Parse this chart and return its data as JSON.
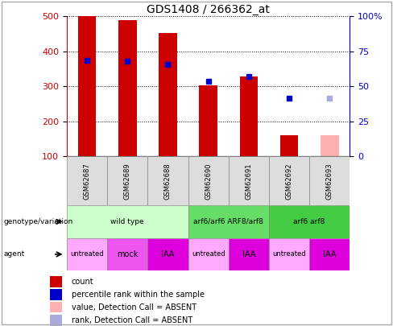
{
  "title": "GDS1408 / 266362_at",
  "samples": [
    "GSM62687",
    "GSM62689",
    "GSM62688",
    "GSM62690",
    "GSM62691",
    "GSM62692",
    "GSM62693"
  ],
  "count_values": [
    500,
    490,
    452,
    302,
    328,
    160,
    null
  ],
  "count_absent": [
    null,
    null,
    null,
    null,
    null,
    null,
    160
  ],
  "percentile_values": [
    375,
    372,
    362,
    315,
    328,
    267,
    null
  ],
  "percentile_absent": [
    null,
    null,
    null,
    null,
    null,
    null,
    267
  ],
  "ylim_left": [
    100,
    500
  ],
  "ylim_right": [
    0,
    100
  ],
  "yticks_left": [
    100,
    200,
    300,
    400,
    500
  ],
  "yticks_right": [
    0,
    25,
    50,
    75,
    100
  ],
  "bar_color": "#cc0000",
  "bar_absent_color": "#ffb0b0",
  "dot_color": "#0000cc",
  "dot_absent_color": "#aaaadd",
  "genotype_groups": [
    {
      "label": "wild type",
      "start": 0,
      "end": 3,
      "color": "#ccffcc"
    },
    {
      "label": "arf6/arf6 ARF8/arf8",
      "start": 3,
      "end": 5,
      "color": "#66dd66"
    },
    {
      "label": "arf6 arf8",
      "start": 5,
      "end": 7,
      "color": "#44cc44"
    }
  ],
  "agent_groups": [
    {
      "label": "untreated",
      "start": 0,
      "end": 1,
      "color": "#ffaaff"
    },
    {
      "label": "mock",
      "start": 1,
      "end": 2,
      "color": "#ee55ee"
    },
    {
      "label": "IAA",
      "start": 2,
      "end": 3,
      "color": "#dd00dd"
    },
    {
      "label": "untreated",
      "start": 3,
      "end": 4,
      "color": "#ffaaff"
    },
    {
      "label": "IAA",
      "start": 4,
      "end": 5,
      "color": "#dd00dd"
    },
    {
      "label": "untreated",
      "start": 5,
      "end": 6,
      "color": "#ffaaff"
    },
    {
      "label": "IAA",
      "start": 6,
      "end": 7,
      "color": "#dd00dd"
    }
  ],
  "legend_items": [
    {
      "label": "count",
      "color": "#cc0000"
    },
    {
      "label": "percentile rank within the sample",
      "color": "#0000cc"
    },
    {
      "label": "value, Detection Call = ABSENT",
      "color": "#ffb0b0"
    },
    {
      "label": "rank, Detection Call = ABSENT",
      "color": "#aaaadd"
    }
  ],
  "fig_bg": "#ffffff",
  "border_color": "#aaaaaa"
}
